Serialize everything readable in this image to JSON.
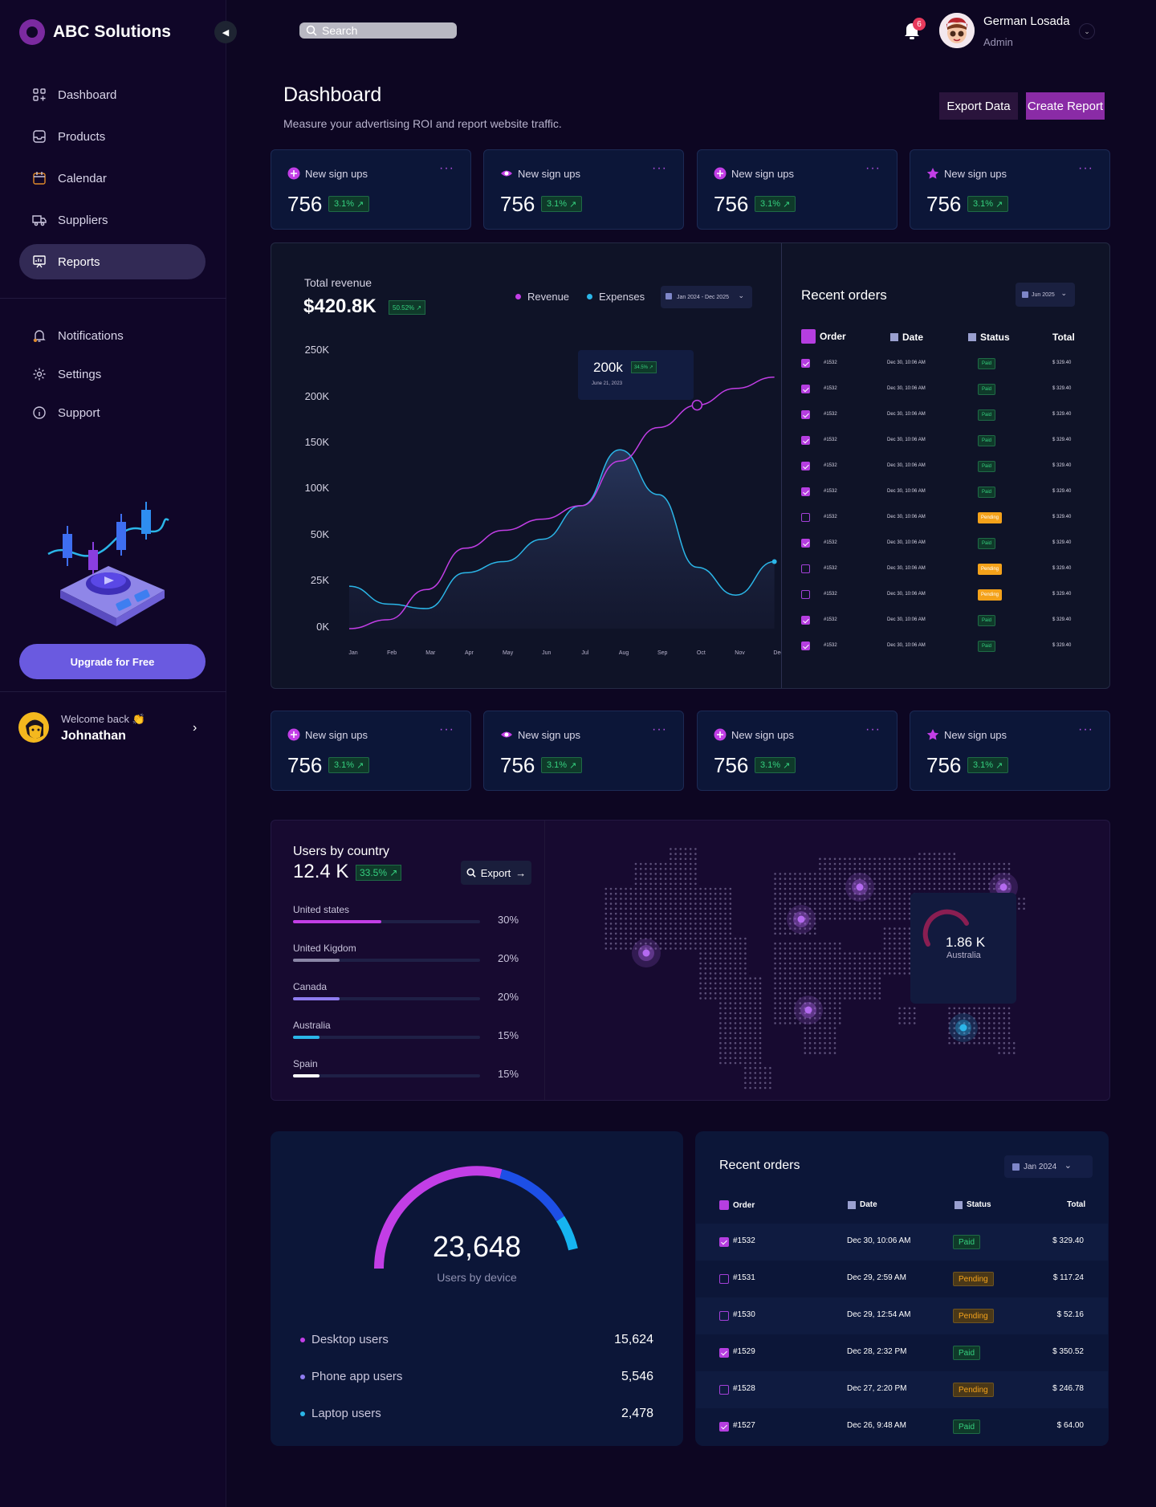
{
  "app": {
    "name": "ABC Solutions"
  },
  "sidebar": {
    "main_items": [
      {
        "label": "Dashboard",
        "icon": "dashboard-icon"
      },
      {
        "label": "Products",
        "icon": "inbox-icon"
      },
      {
        "label": "Calendar",
        "icon": "calendar-icon"
      },
      {
        "label": "Suppliers",
        "icon": "truck-icon"
      },
      {
        "label": "Reports",
        "icon": "presentation-chart-icon",
        "active": true
      }
    ],
    "secondary_items": [
      {
        "label": "Notifications",
        "icon": "bell-icon"
      },
      {
        "label": "Settings",
        "icon": "gear-icon"
      },
      {
        "label": "Support",
        "icon": "info-icon"
      }
    ],
    "upgrade_label": "Upgrade for Free",
    "welcome": {
      "greeting": "Welcome back 👏",
      "name": "Johnathan"
    }
  },
  "topbar": {
    "search_placeholder": "Search",
    "notification_count": "6",
    "user": {
      "name": "German Losada",
      "role": "Admin"
    }
  },
  "header": {
    "title": "Dashboard",
    "subtitle": "Measure your advertising ROI and report website traffic.",
    "export_label": "Export Data",
    "create_label": "Create Report"
  },
  "stat_cards": [
    {
      "title": "New sign ups",
      "value": "756",
      "change": "3.1%",
      "icon": "plus-circle-icon"
    },
    {
      "title": "New sign ups",
      "value": "756",
      "change": "3.1%",
      "icon": "eye-icon"
    },
    {
      "title": "New sign ups",
      "value": "756",
      "change": "3.1%",
      "icon": "plus-circle-icon"
    },
    {
      "title": "New sign ups",
      "value": "756",
      "change": "3.1%",
      "icon": "star-icon"
    }
  ],
  "revenue": {
    "title": "Total revenue",
    "value": "$420.8K",
    "change": "50.52%",
    "legend": [
      "Revenue",
      "Expenses"
    ],
    "date_range": "Jan 2024 - Dec 2025",
    "tooltip": {
      "value": "200k",
      "change": "34.5%",
      "date": "June 21, 2023"
    }
  },
  "chart_data": {
    "type": "line",
    "x": [
      "Jan",
      "Feb",
      "Mar",
      "Apr",
      "May",
      "Jun",
      "Jul",
      "Aug",
      "Sep",
      "Oct",
      "Nov",
      "Dec"
    ],
    "ytick_labels": [
      "0K",
      "25K",
      "50K",
      "100K",
      "150K",
      "200K",
      "250K"
    ],
    "series": [
      {
        "name": "Revenue",
        "color": "#c23ee6",
        "values": [
          0,
          8,
          35,
          72,
          88,
          98,
          110,
          150,
          180,
          200,
          215,
          225
        ]
      },
      {
        "name": "Expenses",
        "color": "#2bb6e8",
        "values": [
          38,
          22,
          18,
          50,
          60,
          80,
          110,
          160,
          120,
          55,
          30,
          60
        ]
      }
    ]
  },
  "recent_orders_1": {
    "title": "Recent orders",
    "date": "Jun 2025",
    "headers": [
      "Order",
      "Date",
      "Status",
      "Total"
    ],
    "rows": [
      {
        "checked": true,
        "order": "#1532",
        "date": "Dec 30, 10:06 AM",
        "status": "Paid",
        "total": "$ 329.40"
      },
      {
        "checked": true,
        "order": "#1532",
        "date": "Dec 30, 10:06 AM",
        "status": "Paid",
        "total": "$ 329.40"
      },
      {
        "checked": true,
        "order": "#1532",
        "date": "Dec 30, 10:06 AM",
        "status": "Paid",
        "total": "$ 329.40"
      },
      {
        "checked": true,
        "order": "#1532",
        "date": "Dec 30, 10:06 AM",
        "status": "Paid",
        "total": "$ 329.40"
      },
      {
        "checked": true,
        "order": "#1532",
        "date": "Dec 30, 10:06 AM",
        "status": "Paid",
        "total": "$ 329.40"
      },
      {
        "checked": true,
        "order": "#1532",
        "date": "Dec 30, 10:06 AM",
        "status": "Paid",
        "total": "$ 329.40"
      },
      {
        "checked": false,
        "order": "#1532",
        "date": "Dec 30, 10:06 AM",
        "status": "Pending",
        "total": "$ 329.40"
      },
      {
        "checked": true,
        "order": "#1532",
        "date": "Dec 30, 10:06 AM",
        "status": "Paid",
        "total": "$ 329.40"
      },
      {
        "checked": false,
        "order": "#1532",
        "date": "Dec 30, 10:06 AM",
        "status": "Pending",
        "total": "$ 329.40"
      },
      {
        "checked": false,
        "order": "#1532",
        "date": "Dec 30, 10:06 AM",
        "status": "Pending",
        "total": "$ 329.40"
      },
      {
        "checked": true,
        "order": "#1532",
        "date": "Dec 30, 10:06 AM",
        "status": "Paid",
        "total": "$ 329.40"
      },
      {
        "checked": true,
        "order": "#1532",
        "date": "Dec 30, 10:06 AM",
        "status": "Paid",
        "total": "$ 329.40"
      }
    ]
  },
  "users_by_country": {
    "title": "Users by country",
    "value": "12.4 K",
    "change": "33.5%",
    "export_label": "Export",
    "countries": [
      {
        "name": "United states",
        "percent": "30%",
        "fill": 0.47,
        "color": "#c23ee6"
      },
      {
        "name": "United Kigdom",
        "percent": "20%",
        "fill": 0.25,
        "color": "#8a86a6"
      },
      {
        "name": "Canada",
        "percent": "20%",
        "fill": 0.25,
        "color": "#8f7cf0"
      },
      {
        "name": "Australia",
        "percent": "15%",
        "fill": 0.14,
        "color": "#2bb6e8"
      },
      {
        "name": "Spain",
        "percent": "15%",
        "fill": 0.14,
        "color": "#ffffff"
      }
    ],
    "map_tooltip": {
      "value": "1.86 K",
      "label": "Australia"
    }
  },
  "users_by_device": {
    "value": "23,648",
    "label": "Users by device",
    "segments": [
      {
        "name": "Desktop users",
        "value": "15,624",
        "color": "#c23ee6"
      },
      {
        "name": "Phone app users",
        "value": "5,546",
        "color": "#8f7cf0"
      },
      {
        "name": "Laptop users",
        "value": "2,478",
        "color": "#2bb6e8"
      }
    ]
  },
  "recent_orders_2": {
    "title": "Recent orders",
    "date": "Jan 2024",
    "headers": [
      "Order",
      "Date",
      "Status",
      "Total"
    ],
    "rows": [
      {
        "checked": true,
        "order": "#1532",
        "date": "Dec 30, 10:06 AM",
        "status": "Paid",
        "total": "$ 329.40"
      },
      {
        "checked": false,
        "order": "#1531",
        "date": "Dec 29, 2:59 AM",
        "status": "Pending",
        "total": "$ 117.24"
      },
      {
        "checked": false,
        "order": "#1530",
        "date": "Dec 29, 12:54 AM",
        "status": "Pending",
        "total": "$ 52.16"
      },
      {
        "checked": true,
        "order": "#1529",
        "date": "Dec 28, 2:32 PM",
        "status": "Paid",
        "total": "$ 350.52"
      },
      {
        "checked": false,
        "order": "#1528",
        "date": "Dec 27, 2:20 PM",
        "status": "Pending",
        "total": "$ 246.78"
      },
      {
        "checked": true,
        "order": "#1527",
        "date": "Dec 26, 9:48 AM",
        "status": "Paid",
        "total": "$ 64.00"
      }
    ]
  }
}
